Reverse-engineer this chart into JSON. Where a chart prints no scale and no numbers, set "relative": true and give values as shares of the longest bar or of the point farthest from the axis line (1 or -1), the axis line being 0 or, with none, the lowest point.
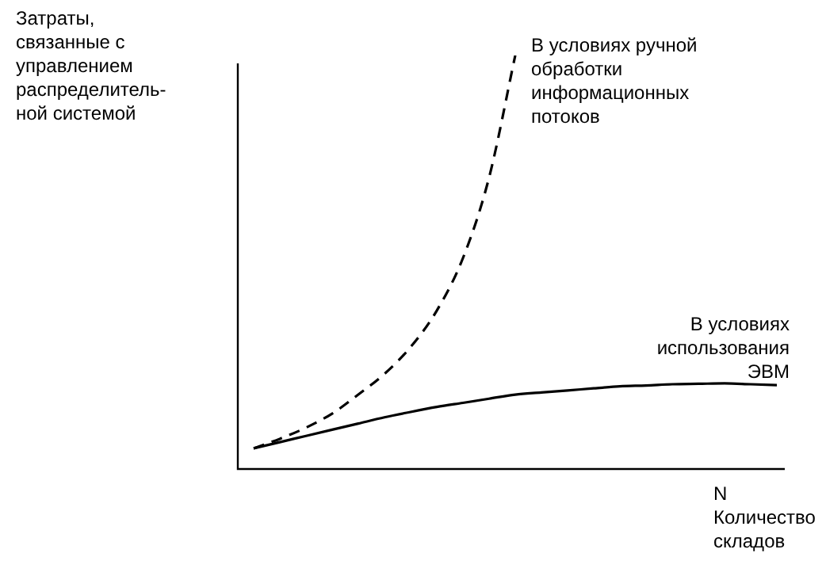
{
  "chart_data": {
    "type": "line",
    "relative": true,
    "legend": false,
    "marker": "none",
    "ylabel": "Затраты,\nсвязанные с\nуправлением\nраспределитель-\nной системой",
    "xlabel": "N\nКоличество\nскладов",
    "categories": [
      null,
      null,
      null,
      null,
      null,
      null,
      null,
      null,
      null,
      null,
      null,
      null,
      null,
      null,
      null,
      null,
      null,
      null,
      null,
      null,
      null
    ],
    "series": [
      {
        "name": "В условиях ручной\nобработки\nинформационных\nпотоков",
        "color": "#000000",
        "line_style": "dashed",
        "values": [
          0.05,
          0.073,
          0.1,
          0.134,
          0.18,
          0.23,
          0.295,
          0.383,
          0.51,
          0.705,
          1.0,
          null,
          null,
          null,
          null,
          null,
          null,
          null,
          null,
          null,
          null
        ]
      },
      {
        "name": "В условиях\nиспользования\nЭВМ",
        "color": "#000000",
        "line_style": "solid",
        "values": [
          0.05,
          0.065,
          0.08,
          0.095,
          0.11,
          0.125,
          0.138,
          0.15,
          0.16,
          0.17,
          0.18,
          0.185,
          0.19,
          0.195,
          0.2,
          0.202,
          0.205,
          0.206,
          0.207,
          0.205,
          0.203
        ]
      }
    ]
  }
}
